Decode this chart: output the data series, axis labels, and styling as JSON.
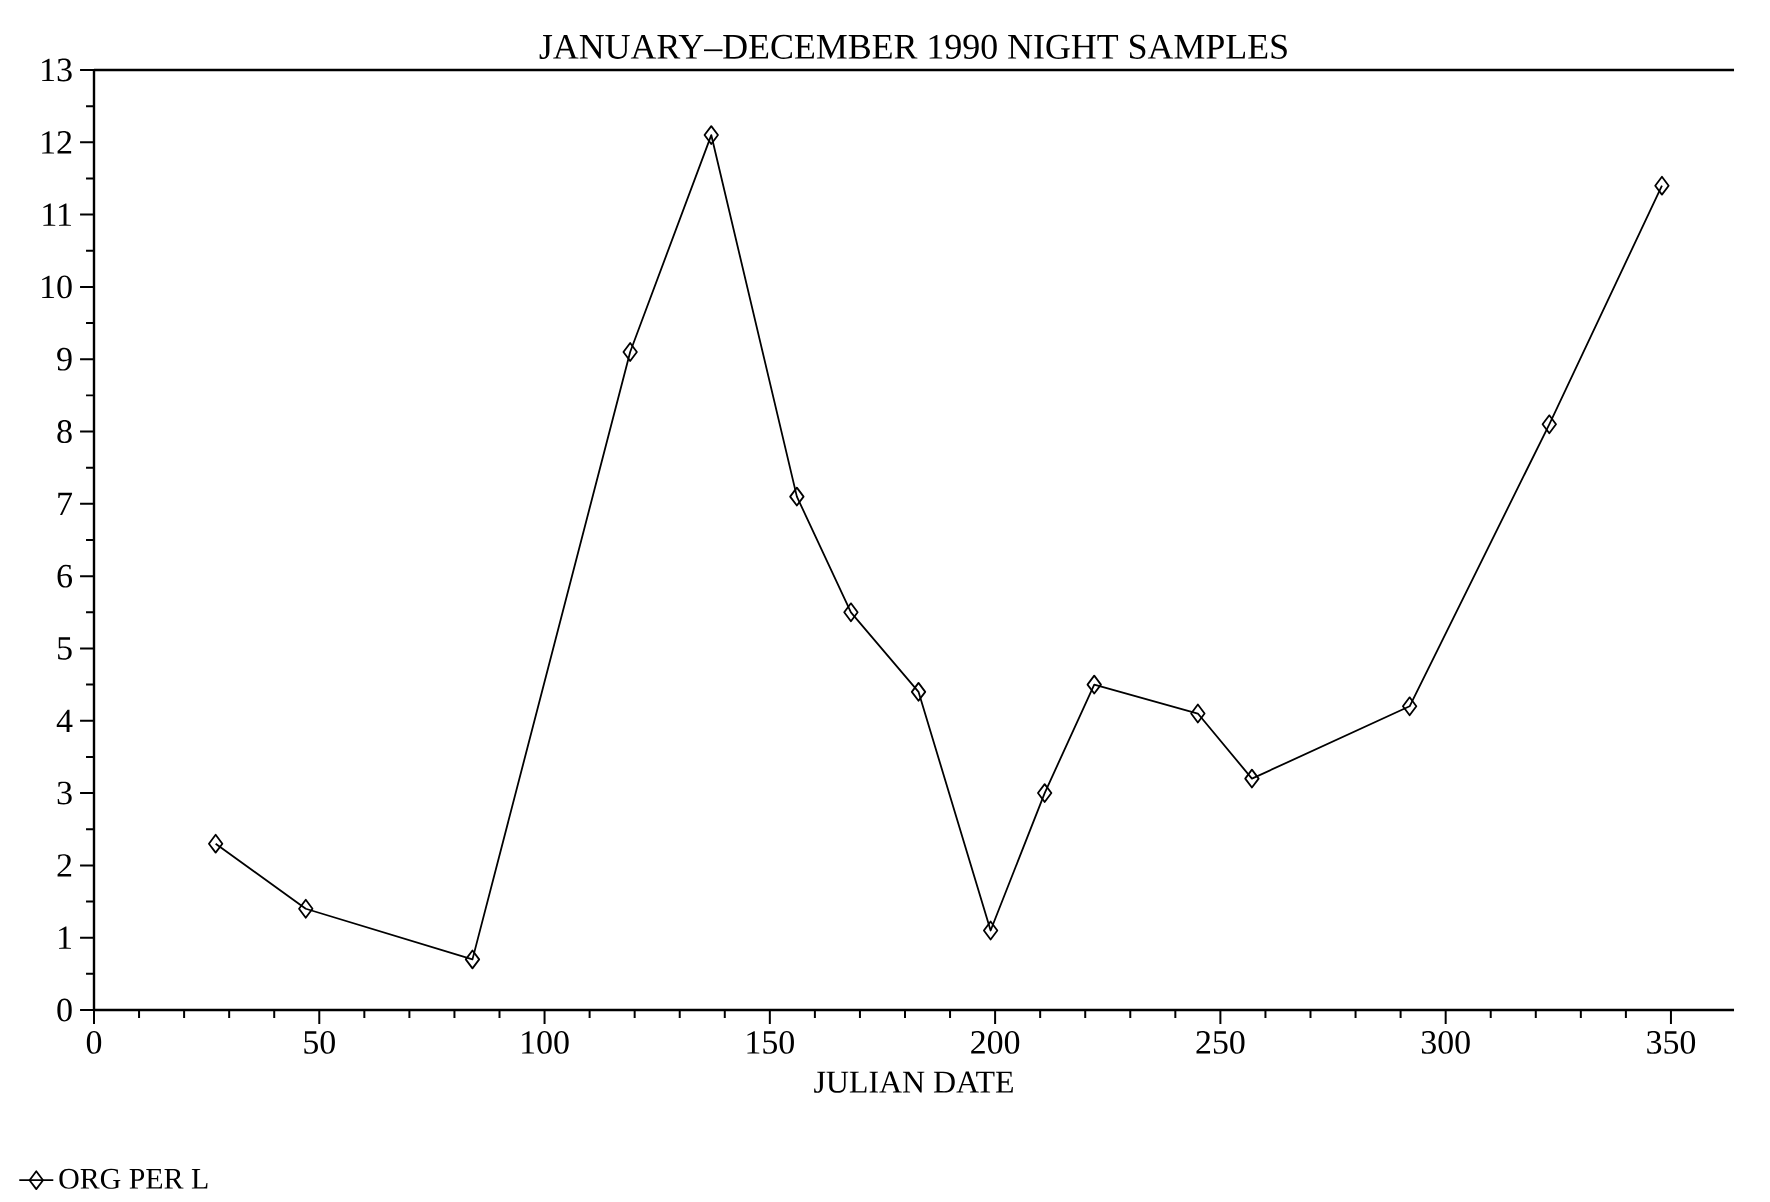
{
  "chart_data": {
    "type": "line",
    "title": "JANUARY–DECEMBER 1990 NIGHT SAMPLES",
    "xlabel": "JULIAN DATE",
    "x": [
      27,
      47,
      84,
      119,
      137,
      156,
      168,
      183,
      199,
      211,
      222,
      245,
      257,
      292,
      323,
      348
    ],
    "series": [
      {
        "name": "ORG PER L",
        "color": "#000000",
        "values": [
          2.3,
          1.4,
          0.7,
          9.1,
          12.1,
          7.1,
          5.5,
          4.4,
          1.1,
          3.0,
          4.5,
          4.1,
          3.2,
          4.2,
          8.1,
          11.4
        ]
      }
    ],
    "xlim": [
      0,
      364
    ],
    "ylim": [
      0,
      13
    ],
    "xticks": [
      0,
      50,
      100,
      150,
      200,
      250,
      300,
      350
    ],
    "yticks": [
      0,
      1,
      2,
      3,
      4,
      5,
      6,
      7,
      8,
      9,
      10,
      11,
      12,
      13
    ],
    "marker": "diamond",
    "line_style": "solid",
    "grid": false,
    "legend": "bottom left"
  }
}
